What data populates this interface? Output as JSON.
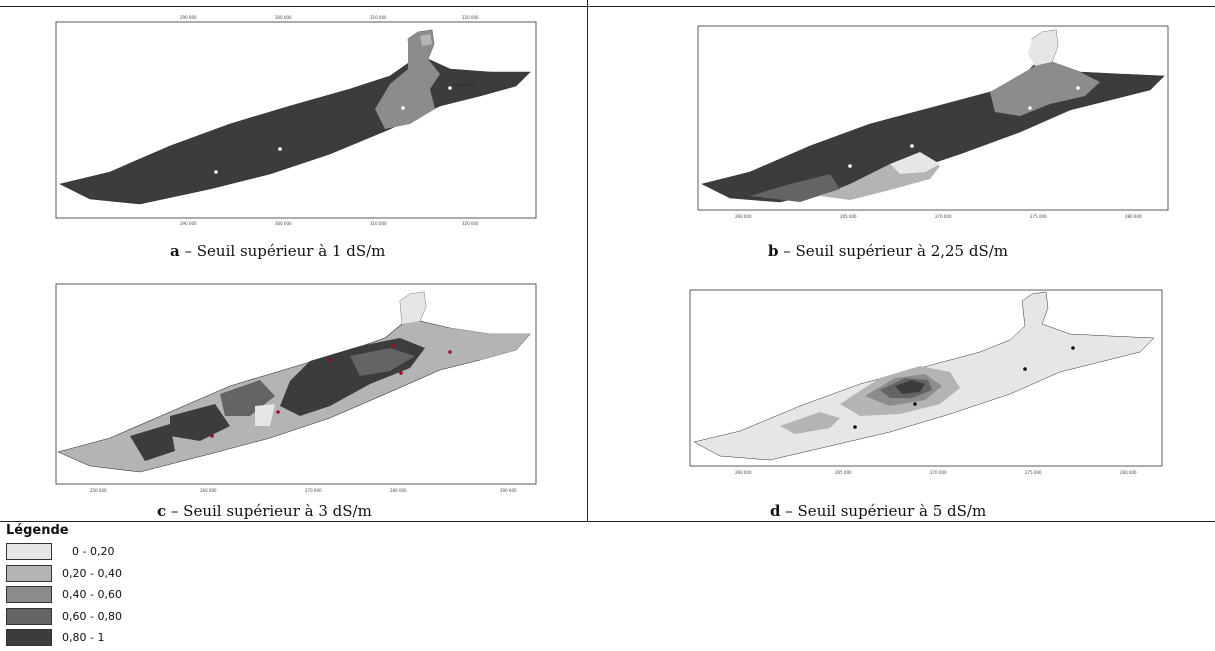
{
  "panels": [
    {
      "id": "a",
      "letter": "a",
      "caption": " – Seuil supérieur à 1 dS/m"
    },
    {
      "id": "b",
      "letter": "b",
      "caption": " – Seuil supérieur à 2,25 dS/m"
    },
    {
      "id": "c",
      "letter": "c",
      "caption": " – Seuil supérieur à 3 dS/m"
    },
    {
      "id": "d",
      "letter": "d",
      "caption": " – Seuil supérieur à 5 dS/m"
    }
  ],
  "legend": {
    "title": "Légende",
    "classes": [
      {
        "label": "0 - 0,20",
        "color": "#e6e6e6"
      },
      {
        "label": "0,20 - 0,40",
        "color": "#b4b4b4"
      },
      {
        "label": "0,40 - 0,60",
        "color": "#8c8c8c"
      },
      {
        "label": "0,60 - 0,80",
        "color": "#646464"
      },
      {
        "label": "0,80 - 1",
        "color": "#3c3c3c"
      }
    ]
  },
  "colors": {
    "c0": "#e6e6e6",
    "c1": "#b4b4b4",
    "c2": "#8c8c8c",
    "c3": "#646464",
    "c4": "#3c3c3c"
  }
}
